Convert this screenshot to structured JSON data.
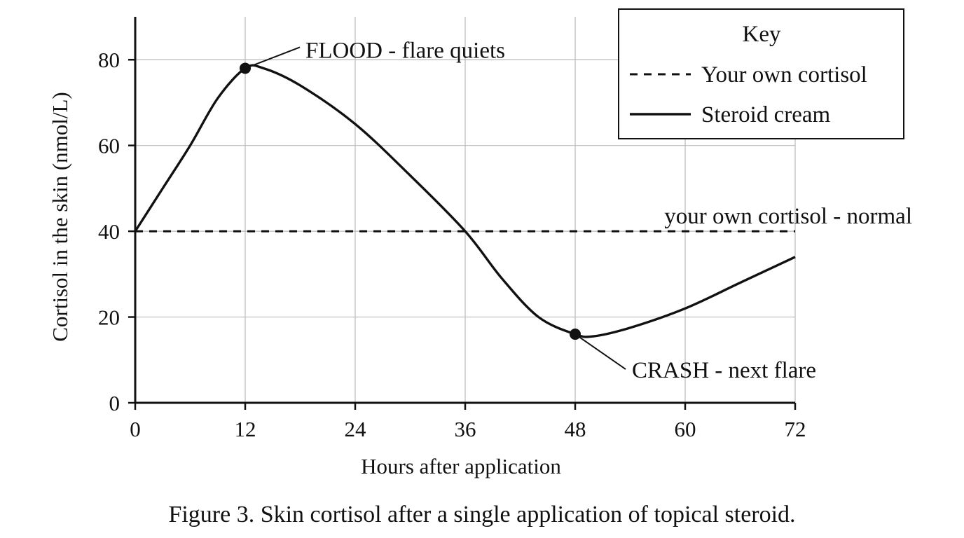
{
  "chart_data": {
    "type": "line",
    "xlabel": "Hours after application",
    "ylabel": "Cortisol in the skin (nmol/L)",
    "xlim": [
      0,
      72
    ],
    "ylim": [
      0,
      90
    ],
    "xticks": [
      0,
      12,
      24,
      36,
      48,
      60,
      72
    ],
    "yticks": [
      0,
      20,
      40,
      60,
      80
    ],
    "grid": true,
    "series": [
      {
        "name": "Your own cortisol",
        "style": "dashed",
        "color": "#111111",
        "x": [
          0,
          72
        ],
        "y": [
          40,
          40
        ]
      },
      {
        "name": "Steroid cream",
        "style": "solid",
        "color": "#111111",
        "x": [
          0,
          3,
          6,
          9,
          12,
          14,
          18,
          24,
          30,
          36,
          40,
          44,
          48,
          50,
          54,
          60,
          66,
          72
        ],
        "y": [
          40,
          50,
          60,
          71,
          78,
          78,
          74,
          65,
          53,
          40,
          29,
          20,
          16,
          15.5,
          17.5,
          22,
          28,
          34
        ]
      }
    ],
    "annotations": [
      {
        "id": "flood",
        "text": "FLOOD - flare quiets",
        "x": 12,
        "y": 78,
        "marker": true
      },
      {
        "id": "crash",
        "text": "CRASH - next flare",
        "x": 48,
        "y": 16,
        "marker": true
      },
      {
        "id": "normal",
        "text": "your own cortisol - normal",
        "x": 72,
        "y": 40,
        "marker": false
      }
    ],
    "legend": {
      "title": "Key",
      "placement": "top-right",
      "entries": [
        {
          "label": "Your own cortisol",
          "style": "dashed"
        },
        {
          "label": "Steroid cream",
          "style": "solid"
        }
      ]
    }
  },
  "caption": "Figure 3. Skin cortisol after a single application of topical steroid."
}
